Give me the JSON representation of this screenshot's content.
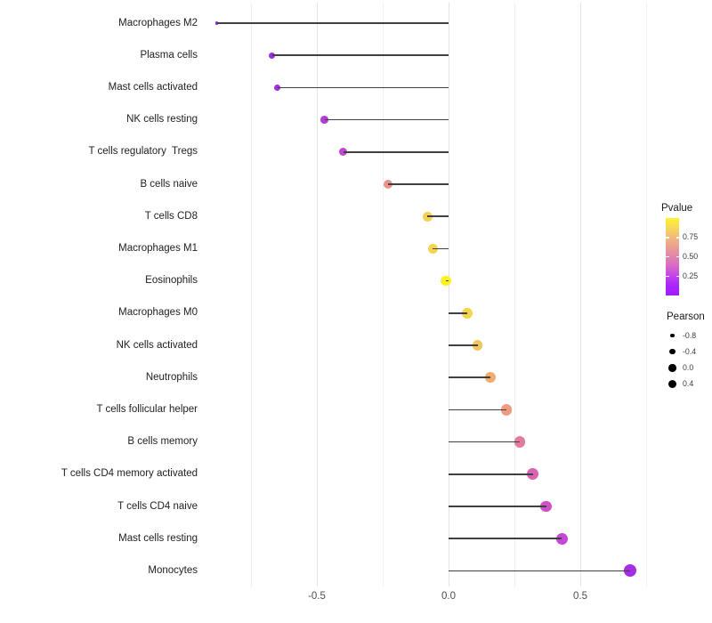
{
  "chart_data": {
    "type": "lollipop",
    "title": "",
    "xlabel": "",
    "ylabel": "",
    "orientation": "horizontal",
    "grid": "vertical-only",
    "x_tick_labels": [
      "-0.5",
      "0.0",
      "0.5"
    ],
    "x_tick_values": [
      -0.5,
      0.0,
      0.5
    ],
    "grid_minor_values": [
      -0.75,
      -0.25,
      0.25,
      0.75
    ],
    "xlim": [
      -0.94,
      0.79
    ],
    "categories": [
      "Macrophages M2",
      "Plasma cells",
      "Mast cells activated",
      "NK cells resting",
      "T cells regulatory  Tregs",
      "B cells naive",
      "T cells CD8",
      "Macrophages M1",
      "Eosinophils",
      "Macrophages M0",
      "NK cells activated",
      "Neutrophils",
      "T cells follicular helper",
      "B cells memory",
      "T cells CD4 memory activated",
      "T cells CD4 naive",
      "Mast cells resting",
      "Monocytes"
    ],
    "series": [
      {
        "name": "Pearson",
        "values": [
          -0.88,
          -0.67,
          -0.65,
          -0.47,
          -0.4,
          -0.23,
          -0.08,
          -0.06,
          -0.01,
          0.07,
          0.11,
          0.16,
          0.22,
          0.27,
          0.32,
          0.37,
          0.43,
          0.69
        ]
      }
    ],
    "point_colors": [
      "#8A2BE0",
      "#9F2CE0",
      "#A02DDF",
      "#B43BD6",
      "#BD49CD",
      "#E8948B",
      "#F2D155",
      "#F3D64F",
      "#FCF126",
      "#F5D44E",
      "#F2C65F",
      "#EFAC6C",
      "#EE9B82",
      "#E27BA0",
      "#DA63B3",
      "#CE53C6",
      "#C348D6",
      "#A52EE4"
    ],
    "legend_position": "right",
    "legends": {
      "pvalue": {
        "title": "Pvalue",
        "tick_labels": [
          "0.75",
          "0.50",
          "0.25"
        ],
        "tick_values": [
          0.75,
          0.5,
          0.25
        ],
        "range": [
          0,
          1
        ],
        "gradient_top_to_bottom": [
          "#FCF32B",
          "#F7D957",
          "#F1B97B",
          "#EB9E93",
          "#E184AC",
          "#D668C8",
          "#C243E9",
          "#A824FB",
          "#A21DFE"
        ]
      },
      "pearson": {
        "title": "Pearson",
        "labels": [
          "-0.8",
          "-0.4",
          "0.0",
          "0.4"
        ],
        "values": [
          -0.8,
          -0.4,
          0.0,
          0.4
        ]
      }
    }
  },
  "colors": {
    "background": "#FFFFFF",
    "stem": "#404040",
    "grid_major": "#E3E3E3",
    "grid_minor": "#EFEFEF",
    "axis_text": "#4D4D4D",
    "category_text": "#212121",
    "legend_dot": "#000000"
  }
}
